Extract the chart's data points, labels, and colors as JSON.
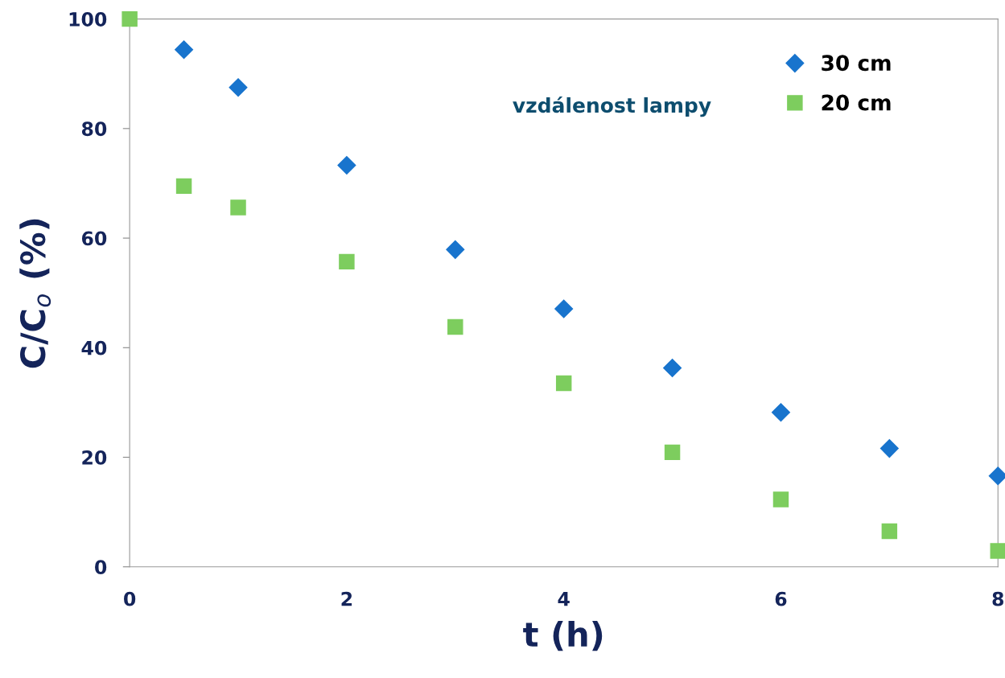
{
  "chart_data": {
    "type": "scatter",
    "xlabel": "t (h)",
    "ylabel": "C/C$_{o}$ (%)",
    "legend_title": "vzdálenost lampy",
    "xlim": [
      0,
      8
    ],
    "xticks": [
      0,
      2,
      4,
      6,
      8
    ],
    "ylim": [
      0,
      100
    ],
    "yticks": [
      0,
      20,
      40,
      60,
      80,
      100
    ],
    "grid": false,
    "legend": "top right",
    "series": [
      {
        "name": "30 cm",
        "color": "#1874cd",
        "marker": "diamond",
        "x": [
          0.5,
          1,
          2,
          3,
          4,
          5,
          6,
          7,
          8
        ],
        "values": [
          94.4,
          87.5,
          73.3,
          57.9,
          47.1,
          36.3,
          28.2,
          21.6,
          16.6
        ]
      },
      {
        "name": "20 cm",
        "color": "#7dcd5e",
        "marker": "square",
        "x": [
          0,
          0.5,
          1,
          2,
          3,
          4,
          5,
          6,
          7,
          8
        ],
        "values": [
          100,
          69.5,
          65.6,
          55.7,
          43.8,
          33.5,
          20.9,
          12.3,
          6.5,
          2.9
        ]
      }
    ]
  }
}
